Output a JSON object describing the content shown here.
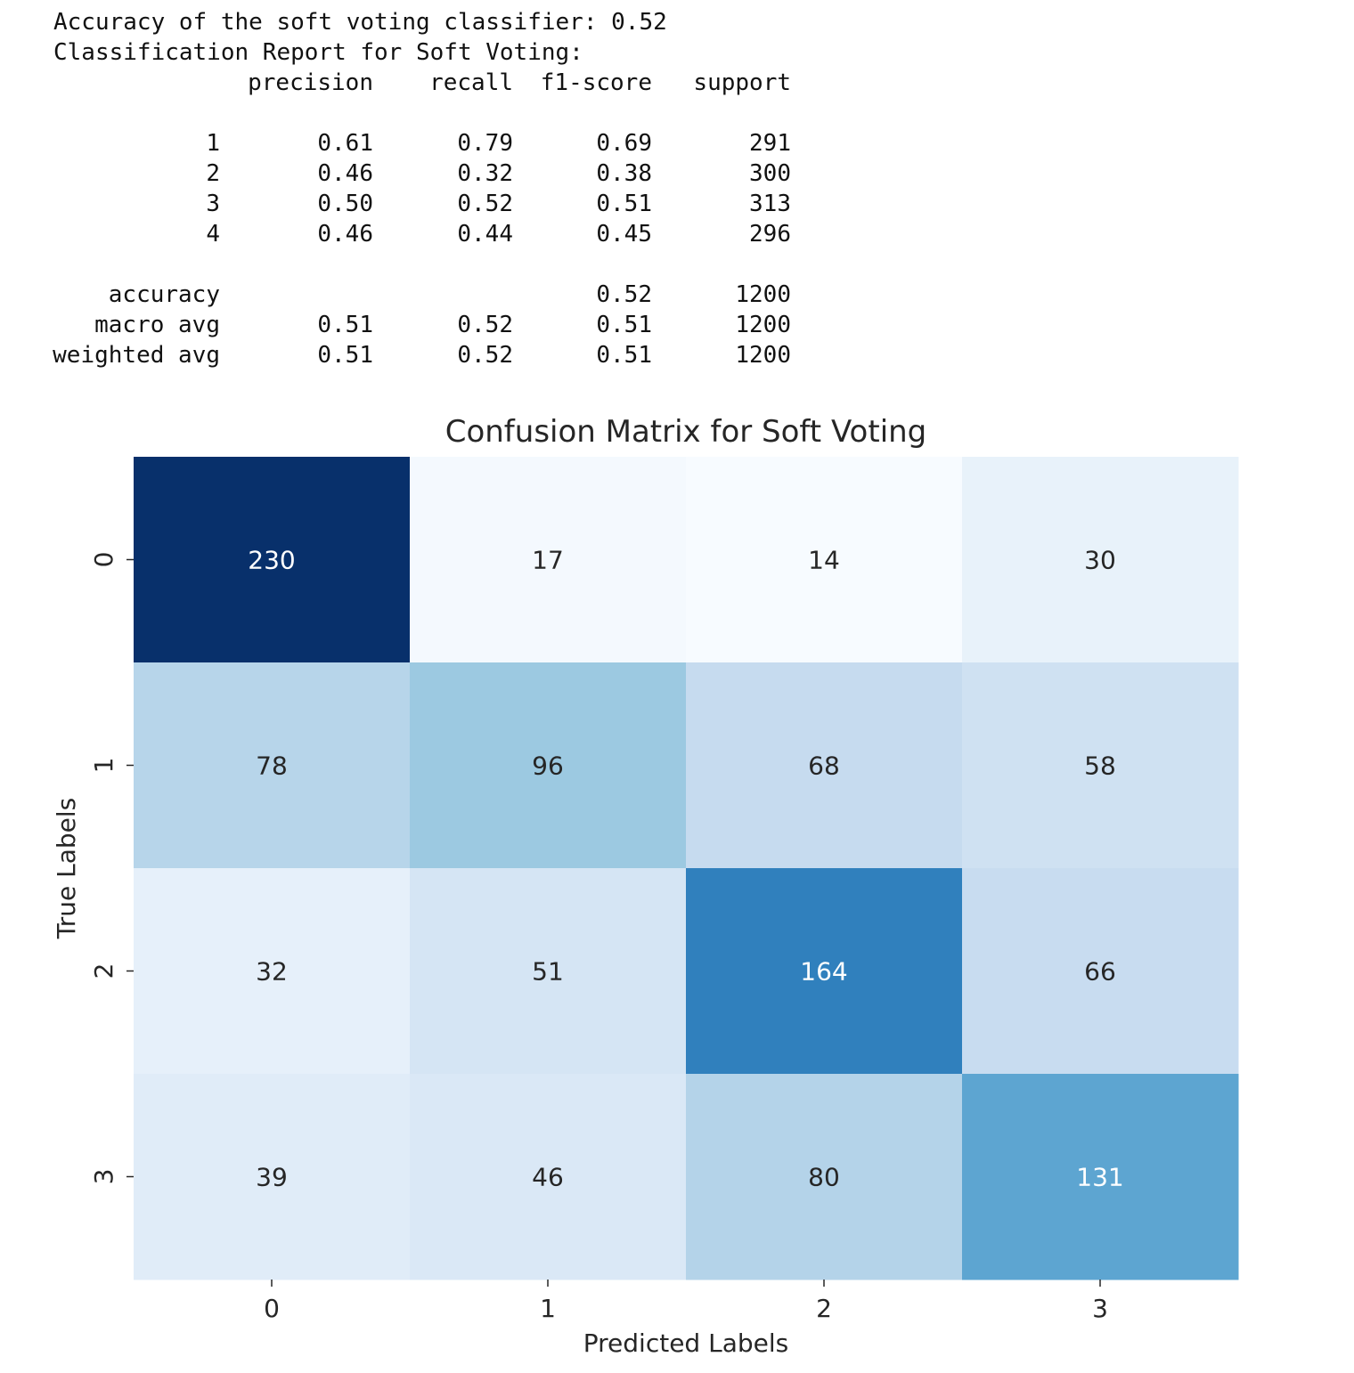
{
  "report": {
    "accuracy_line": "Accuracy of the soft voting classifier: 0.52",
    "title": "Classification Report for Soft Voting:",
    "columns": [
      "precision",
      "recall",
      "f1-score",
      "support"
    ],
    "rows": [
      {
        "label": "1",
        "cells": [
          "0.61",
          "0.79",
          "0.69",
          "291"
        ]
      },
      {
        "label": "2",
        "cells": [
          "0.46",
          "0.32",
          "0.38",
          "300"
        ]
      },
      {
        "label": "3",
        "cells": [
          "0.50",
          "0.52",
          "0.51",
          "313"
        ]
      },
      {
        "label": "4",
        "cells": [
          "0.46",
          "0.44",
          "0.45",
          "296"
        ]
      }
    ],
    "accuracy_row": {
      "label": "accuracy",
      "f1": "0.52",
      "support": "1200"
    },
    "avg_rows": [
      {
        "label": "macro avg",
        "cells": [
          "0.51",
          "0.52",
          "0.51",
          "1200"
        ]
      },
      {
        "label": "weighted avg",
        "cells": [
          "0.51",
          "0.52",
          "0.51",
          "1200"
        ]
      }
    ]
  },
  "chart_data": {
    "type": "heatmap",
    "title": "Confusion Matrix for Soft Voting",
    "x_label": "Predicted Labels",
    "y_label": "True Labels",
    "x_categories": [
      "0",
      "1",
      "2",
      "3"
    ],
    "y_categories": [
      "0",
      "1",
      "2",
      "3"
    ],
    "values": [
      [
        230,
        17,
        14,
        30
      ],
      [
        78,
        96,
        68,
        58
      ],
      [
        32,
        51,
        164,
        66
      ],
      [
        39,
        46,
        80,
        131
      ]
    ],
    "colormap": "Blues"
  }
}
